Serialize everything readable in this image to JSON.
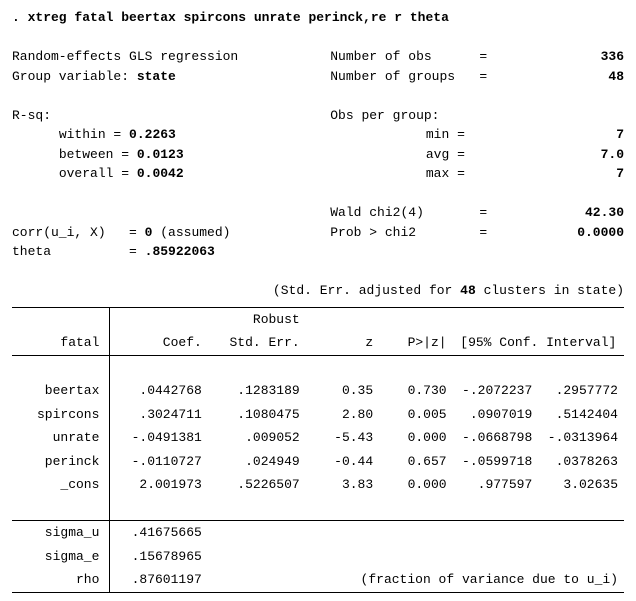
{
  "command": ". xtreg fatal beertax spircons unrate perinck,re r theta",
  "header": {
    "left1": "Random-effects GLS regression",
    "left2a": "Group variable: ",
    "left2b": "state",
    "nobs_label": "Number of obs",
    "nobs": "336",
    "ngroups_label": "Number of groups",
    "ngroups": "48",
    "rsq_label": "R-sq:",
    "obs_per_group_label": "Obs per group:",
    "within_label": "within  =",
    "within": "0.2263",
    "between_label": "between =",
    "between": "0.0123",
    "overall_label": "overall =",
    "overall": "0.0042",
    "min_label": "min =",
    "min": "7",
    "avg_label": "avg =",
    "avg": "7.0",
    "max_label": "max =",
    "max": "7",
    "wald_label": "Wald chi2(4)",
    "wald": "42.30",
    "prob_label": "Prob > chi2",
    "prob": "0.0000",
    "corr_label": "corr(u_i, X)",
    "corr_eq": "= ",
    "corr_val": "0",
    "corr_note": " (assumed)",
    "theta_label": "theta",
    "theta_eq": "= ",
    "theta_val": ".85922063",
    "adj_note_a": "(Std. Err. adjusted for ",
    "adj_note_b": "48",
    "adj_note_c": " clusters in state)"
  },
  "table": {
    "depvar": "fatal",
    "h_coef": "Coef.",
    "h_se_top": "Robust",
    "h_se": "Std. Err.",
    "h_z": "z",
    "h_pz": "P>|z|",
    "h_ci": "[95% Conf. Interval]",
    "rows": [
      {
        "name": "beertax",
        "coef": ".0442768",
        "se": ".1283189",
        "z": "0.35",
        "pz": "0.730",
        "lo": "-.2072237",
        "hi": ".2957772"
      },
      {
        "name": "spircons",
        "coef": ".3024711",
        "se": ".1080475",
        "z": "2.80",
        "pz": "0.005",
        "lo": ".0907019",
        "hi": ".5142404"
      },
      {
        "name": "unrate",
        "coef": "-.0491381",
        "se": ".009052",
        "z": "-5.43",
        "pz": "0.000",
        "lo": "-.0668798",
        "hi": "-.0313964"
      },
      {
        "name": "perinck",
        "coef": "-.0110727",
        "se": ".024949",
        "z": "-0.44",
        "pz": "0.657",
        "lo": "-.0599718",
        "hi": ".0378263"
      },
      {
        "name": "_cons",
        "coef": "2.001973",
        "se": ".5226507",
        "z": "3.83",
        "pz": "0.000",
        "lo": ".977597",
        "hi": "3.02635"
      }
    ],
    "extras": [
      {
        "name": "sigma_u",
        "val": ".41675665",
        "note": ""
      },
      {
        "name": "sigma_e",
        "val": ".15678965",
        "note": ""
      },
      {
        "name": "rho",
        "val": ".87601197",
        "note": "(fraction of variance due to u_i)"
      }
    ]
  },
  "watermark": ""
}
